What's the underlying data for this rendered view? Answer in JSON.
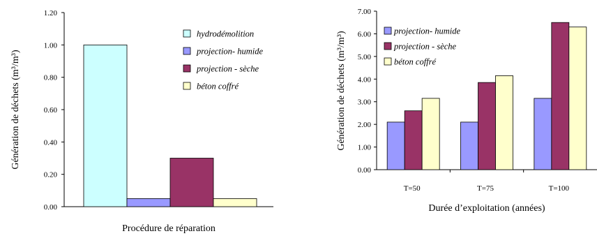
{
  "chart_data": [
    {
      "type": "bar",
      "title": "",
      "xlabel": "Procédure de réparation",
      "ylabel": "Génération de déchets (m³/m³)",
      "ylim": [
        0,
        1.2
      ],
      "yticks": [
        "0.00",
        "0.20",
        "0.40",
        "0.60",
        "0.80",
        "1.00",
        "1.20"
      ],
      "categories": [
        ""
      ],
      "series": [
        {
          "name": "hydrodémolition",
          "values": [
            1.0
          ],
          "color": "#ccffff"
        },
        {
          "name": "projection- humide",
          "values": [
            0.05
          ],
          "color": "#9999ff"
        },
        {
          "name": "projection - sèche",
          "values": [
            0.3
          ],
          "color": "#993366"
        },
        {
          "name": "béton coffré",
          "values": [
            0.05
          ],
          "color": "#ffffcc"
        }
      ],
      "legend": "top-right",
      "grid": false
    },
    {
      "type": "bar",
      "title": "",
      "xlabel": "Durée d’exploitation (années)",
      "ylabel": "Génération de déchets (m³/m³)",
      "ylim": [
        0,
        7
      ],
      "yticks": [
        "0.00",
        "1.00",
        "2.00",
        "3.00",
        "4.00",
        "5.00",
        "6.00",
        "7.00"
      ],
      "categories": [
        "T=50",
        "T=75",
        "T=100"
      ],
      "series": [
        {
          "name": "projection- humide",
          "values": [
            2.1,
            2.1,
            3.15
          ],
          "color": "#9999ff"
        },
        {
          "name": "projection - sèche",
          "values": [
            2.6,
            3.85,
            6.5
          ],
          "color": "#993366"
        },
        {
          "name": "béton coffré",
          "values": [
            3.15,
            4.15,
            6.3
          ],
          "color": "#ffffcc"
        }
      ],
      "legend": "top-left",
      "grid": false
    }
  ]
}
